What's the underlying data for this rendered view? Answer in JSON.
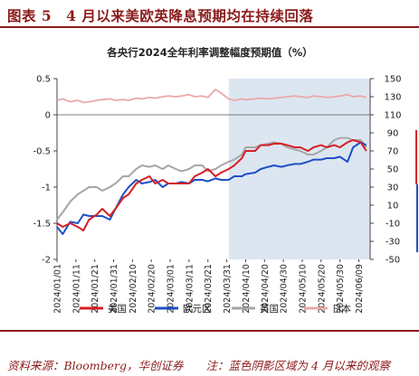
{
  "figure_title": "图表 5　4 月以来美欧英降息预期均在持续回落",
  "source_text": "资料来源：Bloomberg，华创证券　　注：蓝色阴影区域为 4 月以来的观察",
  "chart_data": {
    "type": "line",
    "title": "各央行2024全年利率调整幅度预期值（%）",
    "xlabel": "",
    "ylabel": "",
    "ylim": [
      -2,
      0.5
    ],
    "y2lim": [
      -50,
      150
    ],
    "yticks": [
      "-2",
      "-1.5",
      "-1",
      "-0.5",
      "0",
      "0.5"
    ],
    "y2ticks": [
      "-50",
      "-30",
      "-10",
      "10",
      "30",
      "50",
      "70",
      "90",
      "110",
      "130",
      "150"
    ],
    "x_range": [
      "2024/01/01",
      "2024/06/15"
    ],
    "xtick_labels": [
      "2024/01/01",
      "2024/01/11",
      "2024/01/21",
      "2024/01/31",
      "2024/02/10",
      "2024/02/20",
      "2024/03/01",
      "2024/03/11",
      "2024/03/21",
      "2024/03/31",
      "2024/04/10",
      "2024/04/20",
      "2024/04/30",
      "2024/05/10",
      "2024/05/20",
      "2024/05/30",
      "2024/06/09"
    ],
    "shaded_region": {
      "start": "2024/04/01",
      "end": "2024/06/15",
      "color": "#dce6f1"
    },
    "grid": false,
    "legend_position": "bottom",
    "series": [
      {
        "name": "美国",
        "color": "#d71f26",
        "axis": "left",
        "x": [
          "2024/01/01",
          "2024/01/04",
          "2024/01/08",
          "2024/01/12",
          "2024/01/15",
          "2024/01/18",
          "2024/01/22",
          "2024/01/25",
          "2024/01/29",
          "2024/02/01",
          "2024/02/05",
          "2024/02/08",
          "2024/02/12",
          "2024/02/15",
          "2024/02/19",
          "2024/02/22",
          "2024/02/26",
          "2024/02/29",
          "2024/03/04",
          "2024/03/07",
          "2024/03/11",
          "2024/03/14",
          "2024/03/18",
          "2024/03/21",
          "2024/03/25",
          "2024/03/28",
          "2024/04/01",
          "2024/04/04",
          "2024/04/08",
          "2024/04/10",
          "2024/04/15",
          "2024/04/18",
          "2024/04/22",
          "2024/04/25",
          "2024/04/29",
          "2024/05/02",
          "2024/05/06",
          "2024/05/09",
          "2024/05/13",
          "2024/05/16",
          "2024/05/20",
          "2024/05/23",
          "2024/05/27",
          "2024/05/30",
          "2024/06/03",
          "2024/06/06",
          "2024/06/10",
          "2024/06/13"
        ],
        "values": [
          -1.5,
          -1.55,
          -1.5,
          -1.55,
          -1.6,
          -1.45,
          -1.38,
          -1.3,
          -1.4,
          -1.3,
          -1.15,
          -1.1,
          -0.95,
          -0.9,
          -0.85,
          -0.95,
          -0.9,
          -0.95,
          -0.95,
          -0.95,
          -0.95,
          -0.85,
          -0.8,
          -0.75,
          -0.85,
          -0.8,
          -0.75,
          -0.7,
          -0.6,
          -0.5,
          -0.5,
          -0.42,
          -0.42,
          -0.4,
          -0.4,
          -0.42,
          -0.45,
          -0.45,
          -0.5,
          -0.45,
          -0.42,
          -0.45,
          -0.42,
          -0.45,
          -0.38,
          -0.35,
          -0.38,
          -0.5
        ]
      },
      {
        "name": "欧元区",
        "color": "#1f4fc4",
        "axis": "left",
        "x": [
          "2024/01/01",
          "2024/01/04",
          "2024/01/08",
          "2024/01/12",
          "2024/01/15",
          "2024/01/18",
          "2024/01/22",
          "2024/01/25",
          "2024/01/29",
          "2024/02/01",
          "2024/02/05",
          "2024/02/08",
          "2024/02/12",
          "2024/02/15",
          "2024/02/19",
          "2024/02/22",
          "2024/02/26",
          "2024/02/29",
          "2024/03/04",
          "2024/03/07",
          "2024/03/11",
          "2024/03/14",
          "2024/03/18",
          "2024/03/21",
          "2024/03/25",
          "2024/03/28",
          "2024/04/01",
          "2024/04/04",
          "2024/04/08",
          "2024/04/10",
          "2024/04/15",
          "2024/04/18",
          "2024/04/22",
          "2024/04/25",
          "2024/04/29",
          "2024/05/02",
          "2024/05/06",
          "2024/05/09",
          "2024/05/13",
          "2024/05/16",
          "2024/05/20",
          "2024/05/23",
          "2024/05/27",
          "2024/05/30",
          "2024/06/03",
          "2024/06/06",
          "2024/06/10",
          "2024/06/13"
        ],
        "values": [
          -1.55,
          -1.65,
          -1.48,
          -1.5,
          -1.38,
          -1.4,
          -1.4,
          -1.4,
          -1.45,
          -1.3,
          -1.1,
          -1.0,
          -0.9,
          -0.95,
          -0.93,
          -0.9,
          -1.0,
          -0.95,
          -0.95,
          -0.93,
          -0.95,
          -0.9,
          -0.9,
          -0.92,
          -0.88,
          -0.9,
          -0.9,
          -0.85,
          -0.85,
          -0.82,
          -0.8,
          -0.75,
          -0.72,
          -0.7,
          -0.72,
          -0.7,
          -0.68,
          -0.68,
          -0.65,
          -0.62,
          -0.62,
          -0.6,
          -0.6,
          -0.58,
          -0.65,
          -0.45,
          -0.38,
          -0.42
        ]
      },
      {
        "name": "英国",
        "color": "#a6a6a6",
        "axis": "left",
        "x": [
          "2024/01/01",
          "2024/01/04",
          "2024/01/08",
          "2024/01/12",
          "2024/01/15",
          "2024/01/18",
          "2024/01/22",
          "2024/01/25",
          "2024/01/29",
          "2024/02/01",
          "2024/02/05",
          "2024/02/08",
          "2024/02/12",
          "2024/02/15",
          "2024/02/19",
          "2024/02/22",
          "2024/02/26",
          "2024/02/29",
          "2024/03/04",
          "2024/03/07",
          "2024/03/11",
          "2024/03/14",
          "2024/03/18",
          "2024/03/21",
          "2024/03/25",
          "2024/03/28",
          "2024/04/01",
          "2024/04/04",
          "2024/04/08",
          "2024/04/10",
          "2024/04/15",
          "2024/04/18",
          "2024/04/22",
          "2024/04/25",
          "2024/04/29",
          "2024/05/02",
          "2024/05/06",
          "2024/05/09",
          "2024/05/13",
          "2024/05/16",
          "2024/05/20",
          "2024/05/23",
          "2024/05/27",
          "2024/05/30",
          "2024/06/03",
          "2024/06/06",
          "2024/06/10",
          "2024/06/13"
        ],
        "values": [
          -1.45,
          -1.35,
          -1.2,
          -1.1,
          -1.05,
          -1.0,
          -1.0,
          -1.05,
          -1.0,
          -0.95,
          -0.85,
          -0.85,
          -0.75,
          -0.7,
          -0.72,
          -0.7,
          -0.75,
          -0.7,
          -0.75,
          -0.78,
          -0.75,
          -0.7,
          -0.7,
          -0.78,
          -0.75,
          -0.7,
          -0.65,
          -0.62,
          -0.55,
          -0.45,
          -0.45,
          -0.42,
          -0.4,
          -0.38,
          -0.4,
          -0.45,
          -0.48,
          -0.5,
          -0.55,
          -0.55,
          -0.5,
          -0.45,
          -0.35,
          -0.32,
          -0.32,
          -0.35,
          -0.35,
          -0.45
        ]
      },
      {
        "name": "日本",
        "color": "#eaa9a9",
        "axis": "left",
        "x": [
          "2024/01/01",
          "2024/01/04",
          "2024/01/08",
          "2024/01/12",
          "2024/01/15",
          "2024/01/18",
          "2024/01/22",
          "2024/01/25",
          "2024/01/29",
          "2024/02/01",
          "2024/02/05",
          "2024/02/08",
          "2024/02/12",
          "2024/02/15",
          "2024/02/19",
          "2024/02/22",
          "2024/02/26",
          "2024/02/29",
          "2024/03/04",
          "2024/03/07",
          "2024/03/11",
          "2024/03/14",
          "2024/03/18",
          "2024/03/21",
          "2024/03/25",
          "2024/03/28",
          "2024/04/01",
          "2024/04/04",
          "2024/04/08",
          "2024/04/10",
          "2024/04/15",
          "2024/04/18",
          "2024/04/22",
          "2024/04/25",
          "2024/04/29",
          "2024/05/02",
          "2024/05/06",
          "2024/05/09",
          "2024/05/13",
          "2024/05/16",
          "2024/05/20",
          "2024/05/23",
          "2024/05/27",
          "2024/05/30",
          "2024/06/03",
          "2024/06/06",
          "2024/06/10",
          "2024/06/13"
        ],
        "values": [
          0.2,
          0.22,
          0.18,
          0.2,
          0.17,
          0.18,
          0.2,
          0.21,
          0.22,
          0.2,
          0.21,
          0.2,
          0.23,
          0.22,
          0.24,
          0.23,
          0.25,
          0.26,
          0.25,
          0.26,
          0.28,
          0.25,
          0.26,
          0.24,
          0.35,
          0.3,
          0.22,
          0.2,
          0.22,
          0.21,
          0.22,
          0.23,
          0.22,
          0.23,
          0.24,
          0.25,
          0.26,
          0.25,
          0.24,
          0.26,
          0.25,
          0.24,
          0.25,
          0.26,
          0.28,
          0.25,
          0.26,
          0.24
        ]
      }
    ]
  }
}
